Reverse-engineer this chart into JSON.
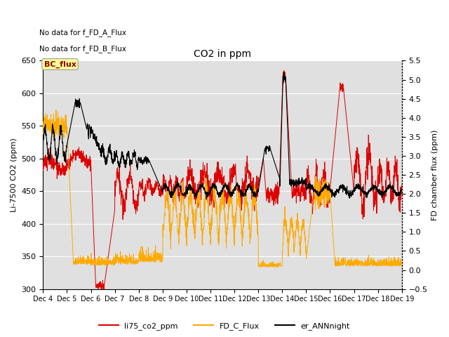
{
  "title": "CO2 in ppm",
  "xlabel": "",
  "ylabel_left": "Li-7500 CO2 (ppm)",
  "ylabel_right": "FD chamber flux (ppm)",
  "ylim_left": [
    300,
    650
  ],
  "ylim_right": [
    -0.5,
    5.5
  ],
  "yticks_left": [
    300,
    350,
    400,
    450,
    500,
    550,
    600,
    650
  ],
  "yticks_right": [
    -0.5,
    0.0,
    0.5,
    1.0,
    1.5,
    2.0,
    2.5,
    3.0,
    3.5,
    4.0,
    4.5,
    5.0,
    5.5
  ],
  "xtick_labels": [
    "Dec 4",
    "Dec 5",
    "Dec 6",
    "Dec 7",
    "Dec 8",
    "Dec 9",
    "Dec 10",
    "Dec 11",
    "Dec 12",
    "Dec 13",
    "Dec 14",
    "Dec 15",
    "Dec 16",
    "Dec 17",
    "Dec 18",
    "Dec 19"
  ],
  "text_top_left_1": "No data for f_FD_A_Flux",
  "text_top_left_2": "No data for f_FD_B_Flux",
  "annotation_box": "BC_flux",
  "background_color": "#ffffff",
  "plot_bg_color": "#e0e0e0",
  "line_red_color": "#dd0000",
  "line_orange_color": "#ffaa00",
  "line_black_color": "#000000",
  "legend_labels": [
    "li75_co2_ppm",
    "FD_C_Flux",
    "er_ANNnight"
  ],
  "grid_color": "#ffffff",
  "n_days": 15,
  "pts_per_day": 144
}
